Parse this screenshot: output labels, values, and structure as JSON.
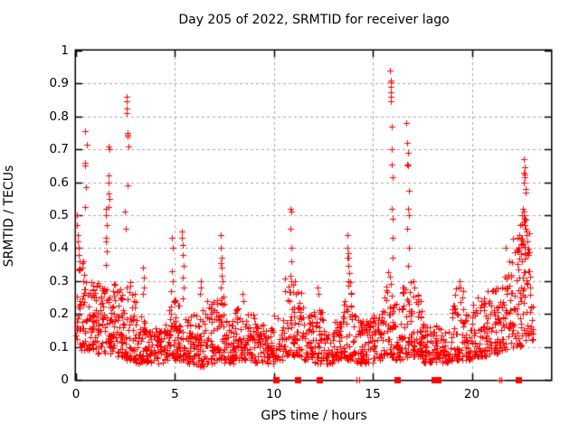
{
  "colors": {
    "marker": "#ff0000",
    "grid": "#a8a8a8",
    "axis": "#000000",
    "background": "#ffffff",
    "text": "#000000"
  },
  "chart_data": {
    "type": "scatter",
    "title": "Day 205 of 2022, SRMTID for receiver lago",
    "xlabel": "GPS time / hours",
    "ylabel": "SRMTID / TECUs",
    "xlim": [
      0,
      24
    ],
    "ylim": [
      0,
      1
    ],
    "xticks": [
      0,
      5,
      10,
      15,
      20
    ],
    "xtick_labels": [
      "0",
      "5",
      "10",
      "15",
      "20"
    ],
    "yticks": [
      0,
      0.1,
      0.2,
      0.3,
      0.4,
      0.5,
      0.6,
      0.7,
      0.8,
      0.9,
      1
    ],
    "ytick_labels": [
      "0",
      "0.1",
      "0.2",
      "0.3",
      "0.4",
      "0.5",
      "0.6",
      "0.7",
      "0.8",
      "0.9",
      "1"
    ],
    "grid": {
      "style": "dashed",
      "x_at": [
        5,
        10,
        15,
        20
      ],
      "y_at": [
        0.1,
        0.2,
        0.3,
        0.4,
        0.5,
        0.6,
        0.7,
        0.8,
        0.9
      ]
    },
    "legend": "none",
    "marker": "plus",
    "series": [
      {
        "name": "srmtid",
        "marker": "plus",
        "color": "#ff0000",
        "spike_points": [
          [
            0.05,
            0.5
          ],
          [
            0.05,
            0.47
          ],
          [
            0.08,
            0.44
          ],
          [
            0.1,
            0.42
          ],
          [
            0.12,
            0.4
          ],
          [
            0.15,
            0.38
          ],
          [
            0.2,
            0.36
          ],
          [
            0.3,
            0.34
          ],
          [
            0.46,
            0.755
          ],
          [
            0.46,
            0.66
          ],
          [
            0.47,
            0.65
          ],
          [
            0.48,
            0.585
          ],
          [
            0.46,
            0.525
          ],
          [
            0.55,
            0.714
          ],
          [
            1.5,
            0.52
          ],
          [
            1.52,
            0.5
          ],
          [
            1.55,
            0.47
          ],
          [
            1.5,
            0.43
          ],
          [
            1.52,
            0.42
          ],
          [
            1.55,
            0.39
          ],
          [
            1.5,
            0.35
          ],
          [
            1.65,
            0.71
          ],
          [
            1.67,
            0.7
          ],
          [
            1.65,
            0.62
          ],
          [
            1.66,
            0.6
          ],
          [
            1.65,
            0.565
          ],
          [
            1.67,
            0.55
          ],
          [
            1.66,
            0.525
          ],
          [
            2.45,
            0.51
          ],
          [
            2.5,
            0.46
          ],
          [
            2.55,
            0.86
          ],
          [
            2.56,
            0.845
          ],
          [
            2.55,
            0.825
          ],
          [
            2.57,
            0.81
          ],
          [
            2.6,
            0.75
          ],
          [
            2.62,
            0.745
          ],
          [
            2.6,
            0.74
          ],
          [
            2.63,
            0.71
          ],
          [
            2.6,
            0.59
          ],
          [
            3.4,
            0.34
          ],
          [
            3.42,
            0.31
          ],
          [
            3.45,
            0.28
          ],
          [
            3.38,
            0.26
          ],
          [
            4.85,
            0.43
          ],
          [
            4.87,
            0.4
          ],
          [
            4.85,
            0.33
          ],
          [
            4.9,
            0.3
          ],
          [
            4.8,
            0.27
          ],
          [
            5.35,
            0.45
          ],
          [
            5.37,
            0.43
          ],
          [
            5.4,
            0.41
          ],
          [
            5.38,
            0.38
          ],
          [
            5.42,
            0.345
          ],
          [
            5.4,
            0.31
          ],
          [
            5.45,
            0.28
          ],
          [
            6.3,
            0.3
          ],
          [
            6.32,
            0.28
          ],
          [
            6.28,
            0.26
          ],
          [
            7.3,
            0.44
          ],
          [
            7.32,
            0.4
          ],
          [
            7.35,
            0.37
          ],
          [
            7.3,
            0.355
          ],
          [
            7.38,
            0.34
          ],
          [
            7.35,
            0.315
          ],
          [
            7.4,
            0.3
          ],
          [
            7.33,
            0.28
          ],
          [
            8.4,
            0.26
          ],
          [
            8.45,
            0.24
          ],
          [
            10.85,
            0.52
          ],
          [
            10.87,
            0.51
          ],
          [
            10.85,
            0.46
          ],
          [
            10.9,
            0.4
          ],
          [
            10.88,
            0.36
          ],
          [
            10.85,
            0.315
          ],
          [
            10.9,
            0.3
          ],
          [
            11.05,
            0.3
          ],
          [
            11.1,
            0.26
          ],
          [
            12.2,
            0.28
          ],
          [
            12.25,
            0.26
          ],
          [
            13.7,
            0.44
          ],
          [
            13.72,
            0.4
          ],
          [
            13.75,
            0.385
          ],
          [
            13.73,
            0.37
          ],
          [
            13.78,
            0.37
          ],
          [
            13.75,
            0.345
          ],
          [
            13.8,
            0.325
          ],
          [
            13.77,
            0.3
          ],
          [
            13.75,
            0.285
          ],
          [
            15.88,
            0.94
          ],
          [
            15.9,
            0.91
          ],
          [
            15.9,
            0.905
          ],
          [
            15.92,
            0.89
          ],
          [
            15.9,
            0.875
          ],
          [
            15.93,
            0.86
          ],
          [
            15.9,
            0.845
          ],
          [
            15.95,
            0.77
          ],
          [
            15.96,
            0.7
          ],
          [
            15.97,
            0.655
          ],
          [
            16.0,
            0.615
          ],
          [
            15.95,
            0.52
          ],
          [
            16.0,
            0.49
          ],
          [
            15.98,
            0.43
          ],
          [
            16.0,
            0.37
          ],
          [
            16.7,
            0.78
          ],
          [
            16.74,
            0.72
          ],
          [
            16.78,
            0.69
          ],
          [
            16.75,
            0.655
          ],
          [
            16.76,
            0.65
          ],
          [
            16.8,
            0.575
          ],
          [
            16.78,
            0.52
          ],
          [
            16.8,
            0.5
          ],
          [
            16.75,
            0.46
          ],
          [
            16.82,
            0.4
          ],
          [
            16.78,
            0.345
          ],
          [
            17.05,
            0.3
          ],
          [
            17.1,
            0.28
          ],
          [
            19.4,
            0.3
          ],
          [
            19.45,
            0.28
          ],
          [
            19.55,
            0.27
          ],
          [
            19.5,
            0.25
          ],
          [
            20.3,
            0.25
          ],
          [
            20.8,
            0.27
          ],
          [
            21.7,
            0.4
          ],
          [
            21.9,
            0.36
          ],
          [
            22.3,
            0.43
          ],
          [
            22.35,
            0.4
          ],
          [
            22.4,
            0.44
          ],
          [
            22.45,
            0.47
          ],
          [
            22.65,
            0.67
          ],
          [
            22.66,
            0.645
          ],
          [
            22.65,
            0.63
          ],
          [
            22.67,
            0.625
          ],
          [
            22.66,
            0.615
          ],
          [
            22.65,
            0.6
          ],
          [
            22.7,
            0.58
          ],
          [
            22.72,
            0.57
          ],
          [
            22.6,
            0.52
          ],
          [
            22.62,
            0.51
          ],
          [
            22.65,
            0.5
          ],
          [
            22.68,
            0.49
          ],
          [
            22.7,
            0.485
          ],
          [
            22.63,
            0.48
          ],
          [
            22.66,
            0.47
          ],
          [
            22.72,
            0.46
          ],
          [
            22.75,
            0.45
          ],
          [
            22.78,
            0.44
          ],
          [
            22.8,
            0.42
          ],
          [
            22.85,
            0.38
          ],
          [
            22.9,
            0.33
          ],
          [
            22.95,
            0.28
          ],
          [
            23.0,
            0.22
          ],
          [
            23.05,
            0.18
          ]
        ],
        "baseline_bins_format": "[hour_start, width_hours, count, y_min, y_max, density_power]",
        "baseline_seed": 205,
        "baseline_bins": [
          [
            0.0,
            0.5,
            46,
            0.09,
            0.36,
            1.6
          ],
          [
            0.5,
            0.5,
            46,
            0.09,
            0.3,
            1.6
          ],
          [
            1.0,
            0.5,
            46,
            0.08,
            0.3,
            1.5
          ],
          [
            1.5,
            0.5,
            46,
            0.08,
            0.3,
            1.5
          ],
          [
            2.0,
            0.5,
            46,
            0.07,
            0.28,
            1.5
          ],
          [
            2.5,
            0.5,
            46,
            0.06,
            0.3,
            1.6
          ],
          [
            3.0,
            0.5,
            40,
            0.05,
            0.2,
            1.4
          ],
          [
            3.5,
            0.5,
            40,
            0.05,
            0.15,
            1.3
          ],
          [
            4.0,
            0.5,
            40,
            0.05,
            0.16,
            1.3
          ],
          [
            4.5,
            0.5,
            42,
            0.06,
            0.24,
            1.5
          ],
          [
            5.0,
            0.5,
            42,
            0.06,
            0.25,
            1.5
          ],
          [
            5.5,
            0.5,
            40,
            0.05,
            0.2,
            1.4
          ],
          [
            6.0,
            0.5,
            42,
            0.04,
            0.22,
            1.5
          ],
          [
            6.5,
            0.5,
            42,
            0.05,
            0.24,
            1.5
          ],
          [
            7.0,
            0.5,
            42,
            0.06,
            0.26,
            1.5
          ],
          [
            7.5,
            0.5,
            40,
            0.05,
            0.2,
            1.4
          ],
          [
            8.0,
            0.5,
            40,
            0.06,
            0.22,
            1.5
          ],
          [
            8.5,
            0.5,
            40,
            0.06,
            0.2,
            1.4
          ],
          [
            9.0,
            0.5,
            38,
            0.05,
            0.17,
            1.3
          ],
          [
            9.5,
            0.5,
            36,
            0.05,
            0.16,
            1.3
          ],
          [
            10.0,
            0.5,
            26,
            0.06,
            0.2,
            1.4
          ],
          [
            10.5,
            0.5,
            40,
            0.07,
            0.32,
            1.7
          ],
          [
            11.0,
            0.5,
            40,
            0.07,
            0.28,
            1.6
          ],
          [
            11.5,
            0.5,
            38,
            0.06,
            0.2,
            1.4
          ],
          [
            12.0,
            0.5,
            38,
            0.05,
            0.22,
            1.5
          ],
          [
            12.5,
            0.5,
            36,
            0.05,
            0.16,
            1.3
          ],
          [
            13.0,
            0.5,
            36,
            0.06,
            0.18,
            1.4
          ],
          [
            13.5,
            0.5,
            40,
            0.06,
            0.3,
            1.7
          ],
          [
            14.0,
            0.5,
            38,
            0.05,
            0.2,
            1.4
          ],
          [
            14.5,
            0.5,
            36,
            0.05,
            0.18,
            1.3
          ],
          [
            15.0,
            0.5,
            38,
            0.06,
            0.2,
            1.4
          ],
          [
            15.5,
            0.5,
            42,
            0.07,
            0.33,
            1.7
          ],
          [
            16.0,
            0.5,
            40,
            0.06,
            0.25,
            1.5
          ],
          [
            16.5,
            0.5,
            42,
            0.07,
            0.3,
            1.6
          ],
          [
            17.0,
            0.5,
            42,
            0.07,
            0.26,
            1.5
          ],
          [
            17.5,
            0.5,
            40,
            0.05,
            0.18,
            1.3
          ],
          [
            18.0,
            0.5,
            38,
            0.05,
            0.17,
            1.3
          ],
          [
            18.5,
            0.5,
            36,
            0.05,
            0.16,
            1.3
          ],
          [
            19.0,
            0.5,
            38,
            0.06,
            0.28,
            1.6
          ],
          [
            19.5,
            0.5,
            38,
            0.06,
            0.22,
            1.5
          ],
          [
            20.0,
            0.5,
            40,
            0.07,
            0.24,
            1.5
          ],
          [
            20.5,
            0.5,
            40,
            0.07,
            0.25,
            1.5
          ],
          [
            21.0,
            0.5,
            42,
            0.08,
            0.28,
            1.5
          ],
          [
            21.5,
            0.5,
            42,
            0.09,
            0.33,
            1.5
          ],
          [
            22.0,
            0.5,
            46,
            0.1,
            0.44,
            1.4
          ],
          [
            22.5,
            0.5,
            46,
            0.12,
            0.52,
            1.2
          ],
          [
            23.0,
            0.15,
            8,
            0.12,
            0.25,
            1.2
          ]
        ]
      },
      {
        "name": "zero-flag-squares",
        "marker": "filled-square",
        "color": "#ff0000",
        "y": 0,
        "points_hours": [
          10.1,
          11.2,
          12.3,
          16.25,
          18.1,
          18.3,
          22.35
        ]
      },
      {
        "name": "zero-plus-marks",
        "marker": "plus",
        "color": "#ff0000",
        "y": 0,
        "points_hours": [
          14.15,
          14.3,
          21.4,
          21.5
        ]
      }
    ]
  }
}
